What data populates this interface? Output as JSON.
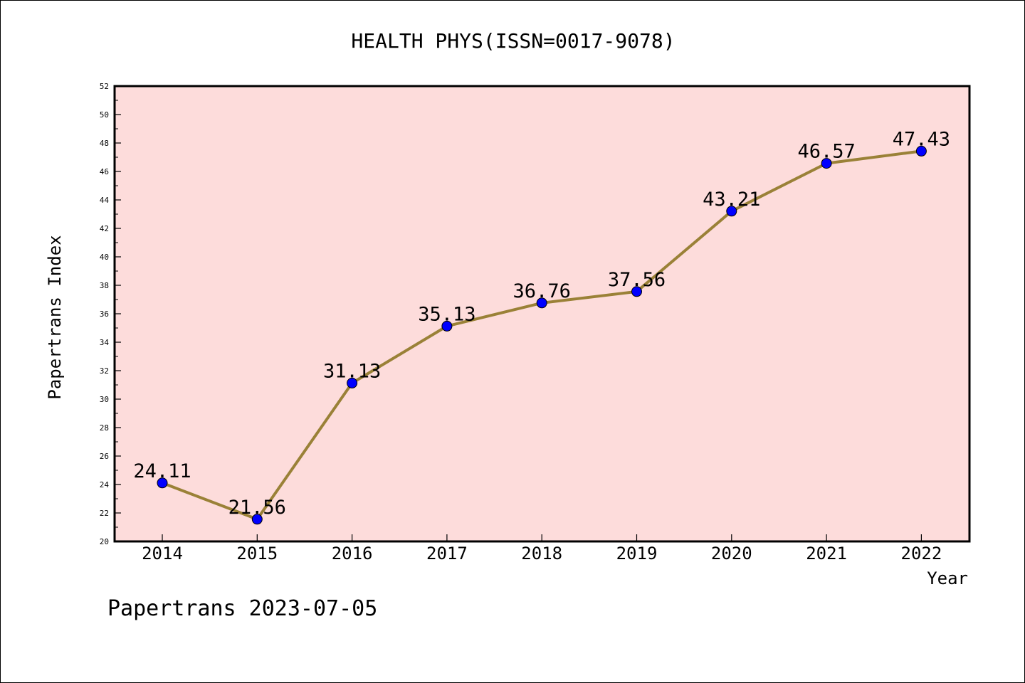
{
  "chart_data": {
    "type": "line",
    "title": "HEALTH PHYS(ISSN=0017-9078)",
    "xlabel": "Year",
    "ylabel": "Papertrans Index",
    "x": [
      "2014",
      "2015",
      "2016",
      "2017",
      "2018",
      "2019",
      "2020",
      "2021",
      "2022"
    ],
    "series": [
      {
        "values": [
          24.11,
          21.56,
          31.13,
          35.13,
          36.76,
          37.56,
          43.21,
          46.57,
          47.43
        ],
        "labels": [
          "24.11",
          "21.56",
          "31.13",
          "35.13",
          "36.76",
          "37.56",
          "43.21",
          "46.57",
          "47.43"
        ]
      }
    ],
    "ylim": [
      20,
      52
    ],
    "yticks": [
      "20",
      "22",
      "24",
      "26",
      "28",
      "30",
      "32",
      "34",
      "36",
      "38",
      "40",
      "42",
      "44",
      "46",
      "48",
      "50",
      "52"
    ],
    "grid": false,
    "colors": {
      "plot_background": "#fddcdb",
      "line": "#9a8137",
      "marker": "#0000ff"
    }
  },
  "footer": {
    "text": "Papertrans 2023-07-05"
  }
}
